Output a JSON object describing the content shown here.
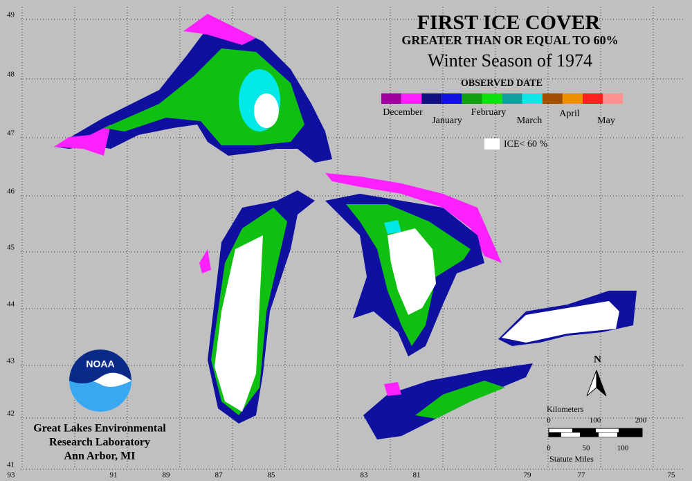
{
  "header": {
    "title": "FIRST ICE COVER",
    "subtitle": "GREATER THAN OR EQUAL TO 60%",
    "season": "Winter Season of 1974"
  },
  "legend": {
    "title": "OBSERVED DATE",
    "months": [
      "December",
      "January",
      "February",
      "March",
      "April",
      "May"
    ],
    "ice_label": "ICE< 60 %"
  },
  "grid": {
    "latitudes": [
      49,
      48,
      47,
      46,
      45,
      44,
      43,
      42,
      41
    ],
    "longitudes": [
      93,
      91,
      89,
      87,
      85,
      83,
      81,
      79,
      77,
      75
    ]
  },
  "scale": {
    "km_label": "Kilometers",
    "km_ticks": [
      0,
      100,
      200
    ],
    "mi_ticks": [
      0,
      50,
      100
    ],
    "mi_label": "Statute Miles"
  },
  "north": "N",
  "logo": "NOAA",
  "credit": [
    "Great Lakes Environmental",
    "Research Laboratory",
    "Ann Arbor, MI"
  ]
}
